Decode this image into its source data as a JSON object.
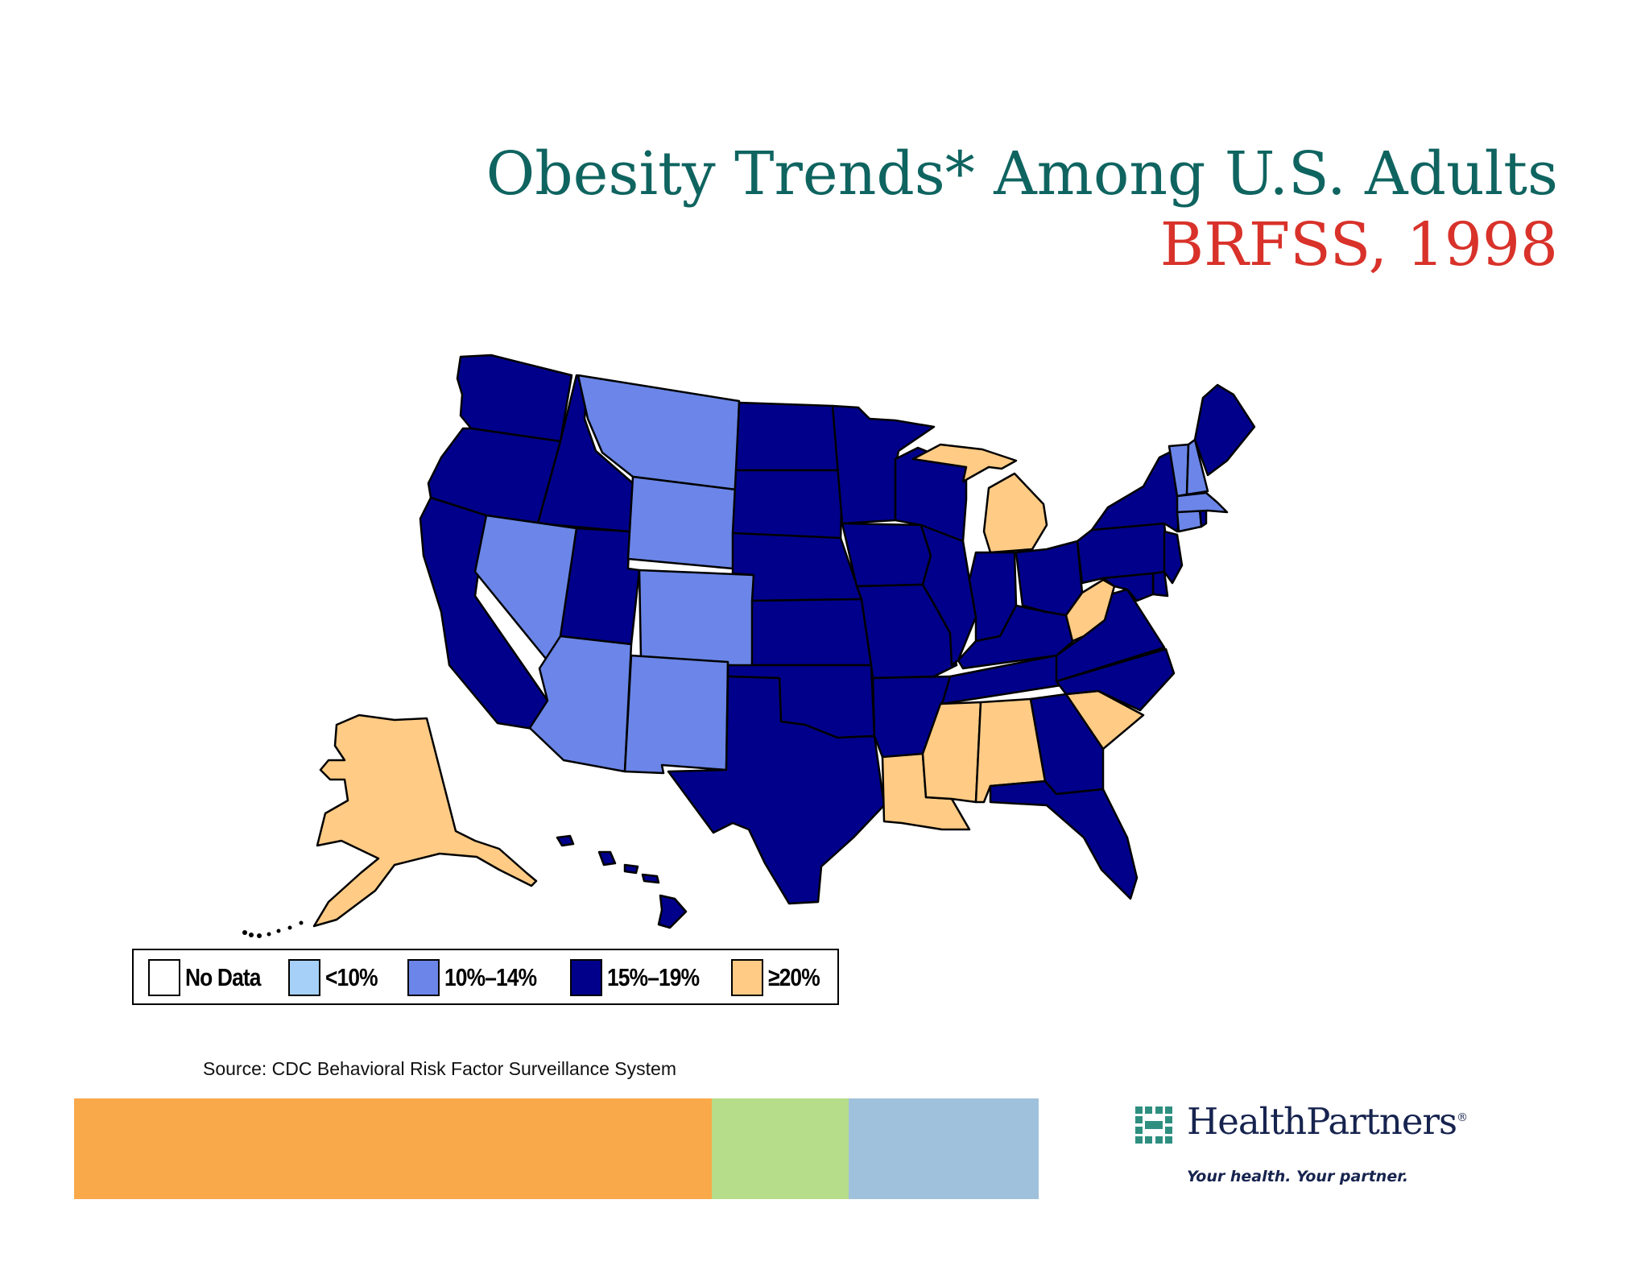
{
  "title": {
    "line1": "Obesity Trends* Among U.S. Adults",
    "line2": "BRFSS, 1998"
  },
  "colors": {
    "no_data": "#ffffff",
    "lt10": "#a6d0f7",
    "10_14": "#6b86e8",
    "15_19": "#00008b",
    "ge20": "#ffcb85",
    "title_teal": "#0f6460",
    "title_red": "#d8322a",
    "bar_orange": "#f9a94a",
    "bar_green": "#b6dd8a",
    "bar_blue": "#9fc1dc"
  },
  "legend": [
    {
      "label": "No Data",
      "color": "#ffffff"
    },
    {
      "label": "<10%",
      "color": "#a6d0f7"
    },
    {
      "label": "10%–14%",
      "color": "#6b86e8"
    },
    {
      "label": "15%–19%",
      "color": "#00008b"
    },
    {
      "label": "≥20%",
      "color": "#ffcb85"
    }
  ],
  "map_data": {
    "categories": {
      "10%–14%": [
        "MT",
        "WY",
        "NV",
        "CO",
        "AZ",
        "NM",
        "VT",
        "NH",
        "MA",
        "CT"
      ],
      "≥20%": [
        "AK",
        "MI",
        "WV",
        "SC",
        "LA",
        "MS",
        "AL"
      ],
      "15%–19%": [
        "WA",
        "OR",
        "CA",
        "ID",
        "UT",
        "ND",
        "SD",
        "NE",
        "KS",
        "OK",
        "TX",
        "MN",
        "IA",
        "MO",
        "AR",
        "WI",
        "IL",
        "IN",
        "OH",
        "KY",
        "TN",
        "GA",
        "FL",
        "NC",
        "VA",
        "PA",
        "NY",
        "ME",
        "NJ",
        "DE",
        "MD",
        "RI",
        "HI"
      ]
    }
  },
  "source": "Source: CDC Behavioral Risk Factor Surveillance  System",
  "logo": {
    "name": "HealthPartners",
    "registered": "®",
    "tagline": "Your health. Your partner."
  }
}
